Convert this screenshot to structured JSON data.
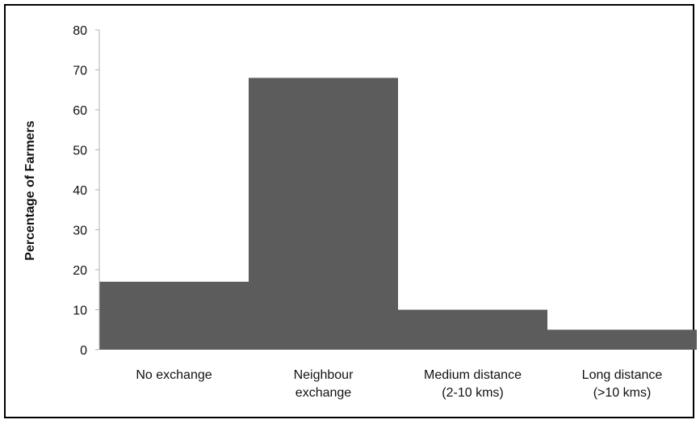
{
  "chart_data": {
    "type": "bar",
    "title": "",
    "xlabel": "",
    "ylabel": "Percentage of Farmers",
    "ylim": [
      0,
      80
    ],
    "yticks": [
      0,
      10,
      20,
      30,
      40,
      50,
      60,
      70,
      80
    ],
    "categories": [
      [
        "No exchange"
      ],
      [
        "Neighbour",
        "exchange"
      ],
      [
        "Medium distance",
        "(2-10 kms)"
      ],
      [
        "Long distance",
        "(>10 kms)"
      ]
    ],
    "values": [
      17,
      68,
      10,
      5
    ],
    "grid": false,
    "legend": "none",
    "bar_color": "#5c5c5c",
    "axis_color": "#b0b0b0"
  }
}
